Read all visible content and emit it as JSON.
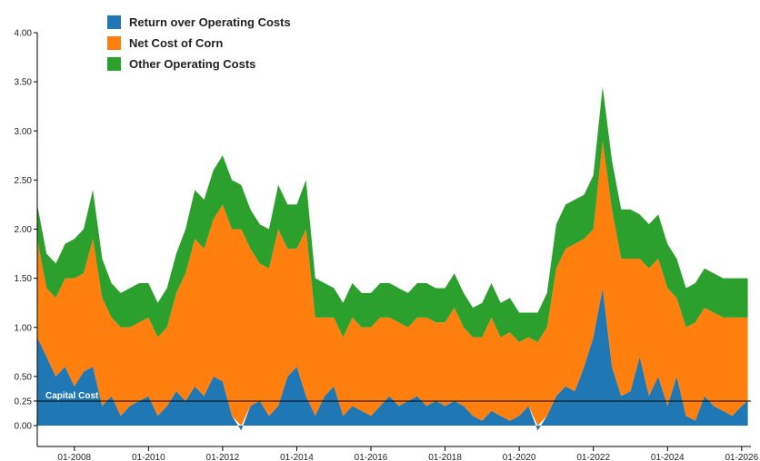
{
  "chart_data": {
    "type": "area",
    "stacked": true,
    "xlabel": "",
    "ylabel": "",
    "x_ticks": [
      "01-2008",
      "01-2010",
      "01-2012",
      "01-2014",
      "01-2016",
      "01-2018",
      "01-2020",
      "01-2022",
      "01-2024",
      "01-2026"
    ],
    "y_ticks": [
      "4.00",
      "3.50",
      "3.00",
      "2.50",
      "2.00",
      "1.50",
      "1.00",
      "0.50",
      "0.25",
      "0.00"
    ],
    "ylim": [
      -0.15,
      4.0
    ],
    "xlim": [
      "2007-01",
      "2026-04"
    ],
    "legend_position": "top-left",
    "x": [
      "2007-01",
      "2007-04",
      "2007-07",
      "2007-10",
      "2008-01",
      "2008-04",
      "2008-07",
      "2008-10",
      "2009-01",
      "2009-04",
      "2009-07",
      "2009-10",
      "2010-01",
      "2010-04",
      "2010-07",
      "2010-10",
      "2011-01",
      "2011-04",
      "2011-07",
      "2011-10",
      "2012-01",
      "2012-04",
      "2012-07",
      "2012-10",
      "2013-01",
      "2013-04",
      "2013-07",
      "2013-10",
      "2014-01",
      "2014-04",
      "2014-07",
      "2014-10",
      "2015-01",
      "2015-04",
      "2015-07",
      "2015-10",
      "2016-01",
      "2016-04",
      "2016-07",
      "2016-10",
      "2017-01",
      "2017-04",
      "2017-07",
      "2017-10",
      "2018-01",
      "2018-04",
      "2018-07",
      "2018-10",
      "2019-01",
      "2019-04",
      "2019-07",
      "2019-10",
      "2020-01",
      "2020-04",
      "2020-07",
      "2020-10",
      "2021-01",
      "2021-04",
      "2021-07",
      "2021-10",
      "2022-01",
      "2022-04",
      "2022-07",
      "2022-10",
      "2023-01",
      "2023-04",
      "2023-07",
      "2023-10",
      "2024-01",
      "2024-04",
      "2024-07",
      "2024-10",
      "2025-01",
      "2025-04",
      "2025-07",
      "2025-10",
      "2026-01",
      "2026-03"
    ],
    "series": [
      {
        "name": "Return over Operating Costs",
        "color": "#1f77b4",
        "values": [
          0.9,
          0.7,
          0.5,
          0.6,
          0.4,
          0.55,
          0.6,
          0.2,
          0.3,
          0.1,
          0.2,
          0.25,
          0.3,
          0.1,
          0.2,
          0.35,
          0.25,
          0.4,
          0.3,
          0.5,
          0.45,
          0.1,
          -0.05,
          0.2,
          0.25,
          0.1,
          0.2,
          0.5,
          0.6,
          0.3,
          0.1,
          0.3,
          0.4,
          0.1,
          0.2,
          0.15,
          0.1,
          0.2,
          0.3,
          0.2,
          0.25,
          0.3,
          0.2,
          0.25,
          0.2,
          0.25,
          0.2,
          0.1,
          0.05,
          0.15,
          0.1,
          0.05,
          0.1,
          0.2,
          -0.05,
          0.1,
          0.3,
          0.4,
          0.35,
          0.6,
          0.9,
          1.4,
          0.6,
          0.3,
          0.35,
          0.7,
          0.3,
          0.5,
          0.2,
          0.5,
          0.1,
          0.05,
          0.3,
          0.2,
          0.15,
          0.1,
          0.2,
          0.25
        ]
      },
      {
        "name": "Net Cost of Corn",
        "color": "#ff7f0e",
        "values": [
          1.0,
          0.7,
          0.8,
          0.9,
          1.1,
          1.0,
          1.3,
          1.1,
          0.8,
          0.9,
          0.8,
          0.8,
          0.8,
          0.8,
          0.8,
          1.0,
          1.3,
          1.5,
          1.5,
          1.6,
          1.8,
          1.9,
          2.0,
          1.6,
          1.4,
          1.5,
          1.8,
          1.3,
          1.2,
          1.7,
          1.0,
          0.8,
          0.7,
          0.8,
          0.9,
          0.85,
          0.9,
          0.9,
          0.8,
          0.85,
          0.75,
          0.8,
          0.9,
          0.8,
          0.85,
          0.95,
          0.8,
          0.8,
          0.85,
          0.95,
          0.8,
          0.9,
          0.75,
          0.7,
          0.85,
          0.9,
          1.3,
          1.4,
          1.5,
          1.3,
          1.1,
          1.5,
          1.6,
          1.4,
          1.35,
          1.0,
          1.3,
          1.2,
          1.2,
          0.8,
          0.9,
          1.0,
          0.9,
          0.95,
          0.95,
          1.0,
          0.9,
          0.85
        ]
      },
      {
        "name": "Other Operating Costs",
        "color": "#2ca02c",
        "values": [
          0.35,
          0.35,
          0.35,
          0.35,
          0.4,
          0.45,
          0.5,
          0.4,
          0.35,
          0.35,
          0.4,
          0.4,
          0.35,
          0.35,
          0.4,
          0.4,
          0.45,
          0.5,
          0.5,
          0.5,
          0.5,
          0.5,
          0.45,
          0.4,
          0.4,
          0.4,
          0.45,
          0.45,
          0.45,
          0.5,
          0.4,
          0.35,
          0.3,
          0.35,
          0.35,
          0.35,
          0.35,
          0.35,
          0.35,
          0.35,
          0.35,
          0.35,
          0.35,
          0.35,
          0.35,
          0.35,
          0.35,
          0.3,
          0.35,
          0.35,
          0.35,
          0.35,
          0.3,
          0.25,
          0.3,
          0.35,
          0.45,
          0.45,
          0.45,
          0.45,
          0.55,
          0.55,
          0.5,
          0.5,
          0.5,
          0.45,
          0.45,
          0.45,
          0.45,
          0.4,
          0.4,
          0.4,
          0.4,
          0.4,
          0.4,
          0.4,
          0.4,
          0.4
        ]
      }
    ],
    "reference_line": {
      "label": "Capital Cost",
      "value": 0.25,
      "color": "#000000"
    }
  }
}
